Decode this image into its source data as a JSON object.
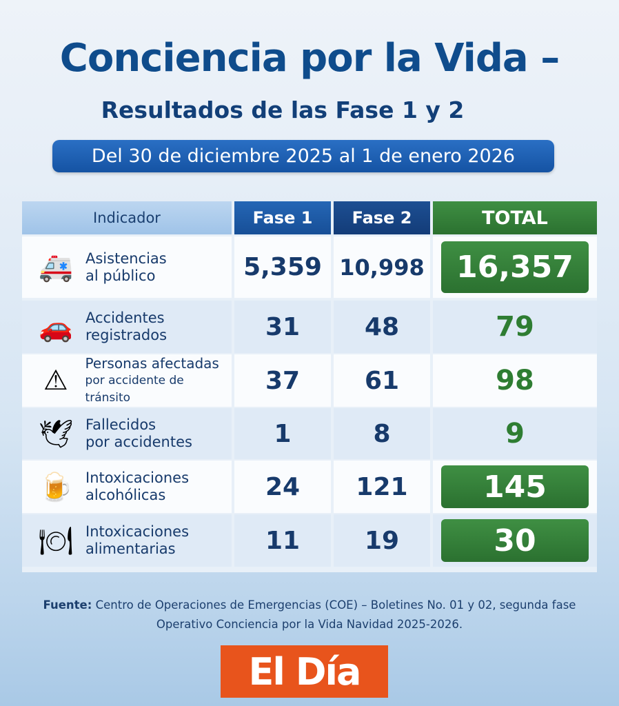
{
  "title": "Conciencia por la Vida –",
  "subtitle": "Resultados de las Fase 1 y 2",
  "date_range": "Del 30 de diciembre 2025 al 1 de enero 2026",
  "table": {
    "headers": [
      "Indicador",
      "Fase 1",
      "Fase 2",
      "TOTAL"
    ],
    "rows": [
      {
        "icon": "ambulance-icon",
        "line1": "Asistencias",
        "line2": "al público",
        "fase1": "5,359",
        "fase2": "10,998",
        "total": "16,357",
        "highlight": true
      },
      {
        "icon": "car-crash-icon",
        "line1": "Accidentes",
        "line2": "registrados",
        "fase1": "31",
        "fase2": "48",
        "total": "79",
        "highlight": false
      },
      {
        "icon": "warning-icon",
        "line1": "Personas afectadas",
        "line2": "por accidente de tránsito",
        "fase1": "37",
        "fase2": "61",
        "total": "98",
        "highlight": false
      },
      {
        "icon": "dove-icon",
        "line1": "Fallecidos",
        "line2": "por accidentes",
        "fase1": "1",
        "fase2": "8",
        "total": "9",
        "highlight": false
      },
      {
        "icon": "beer-mug-icon",
        "line1": "Intoxicaciones",
        "line2": "alcohólicas",
        "fase1": "24",
        "fase2": "121",
        "total": "145",
        "highlight": true
      },
      {
        "icon": "plate-food-icon",
        "line1": "Intoxicaciones",
        "line2": "alimentarias",
        "fase1": "11",
        "fase2": "19",
        "total": "30",
        "highlight": true
      }
    ]
  },
  "source": {
    "label": "Fuente:",
    "line1": "Centro de Operaciones de Emergencias (COE) – Boletines No. 01 y 02, segunda fase",
    "line2": "Operativo Conciencia por la Vida Navidad 2025-2026."
  },
  "logo": "El Día",
  "colors": {
    "title": "#0f4c8c",
    "header_blue": "#1a4f95",
    "total_green": "#2e7d32",
    "logo_orange": "#e8541c"
  }
}
